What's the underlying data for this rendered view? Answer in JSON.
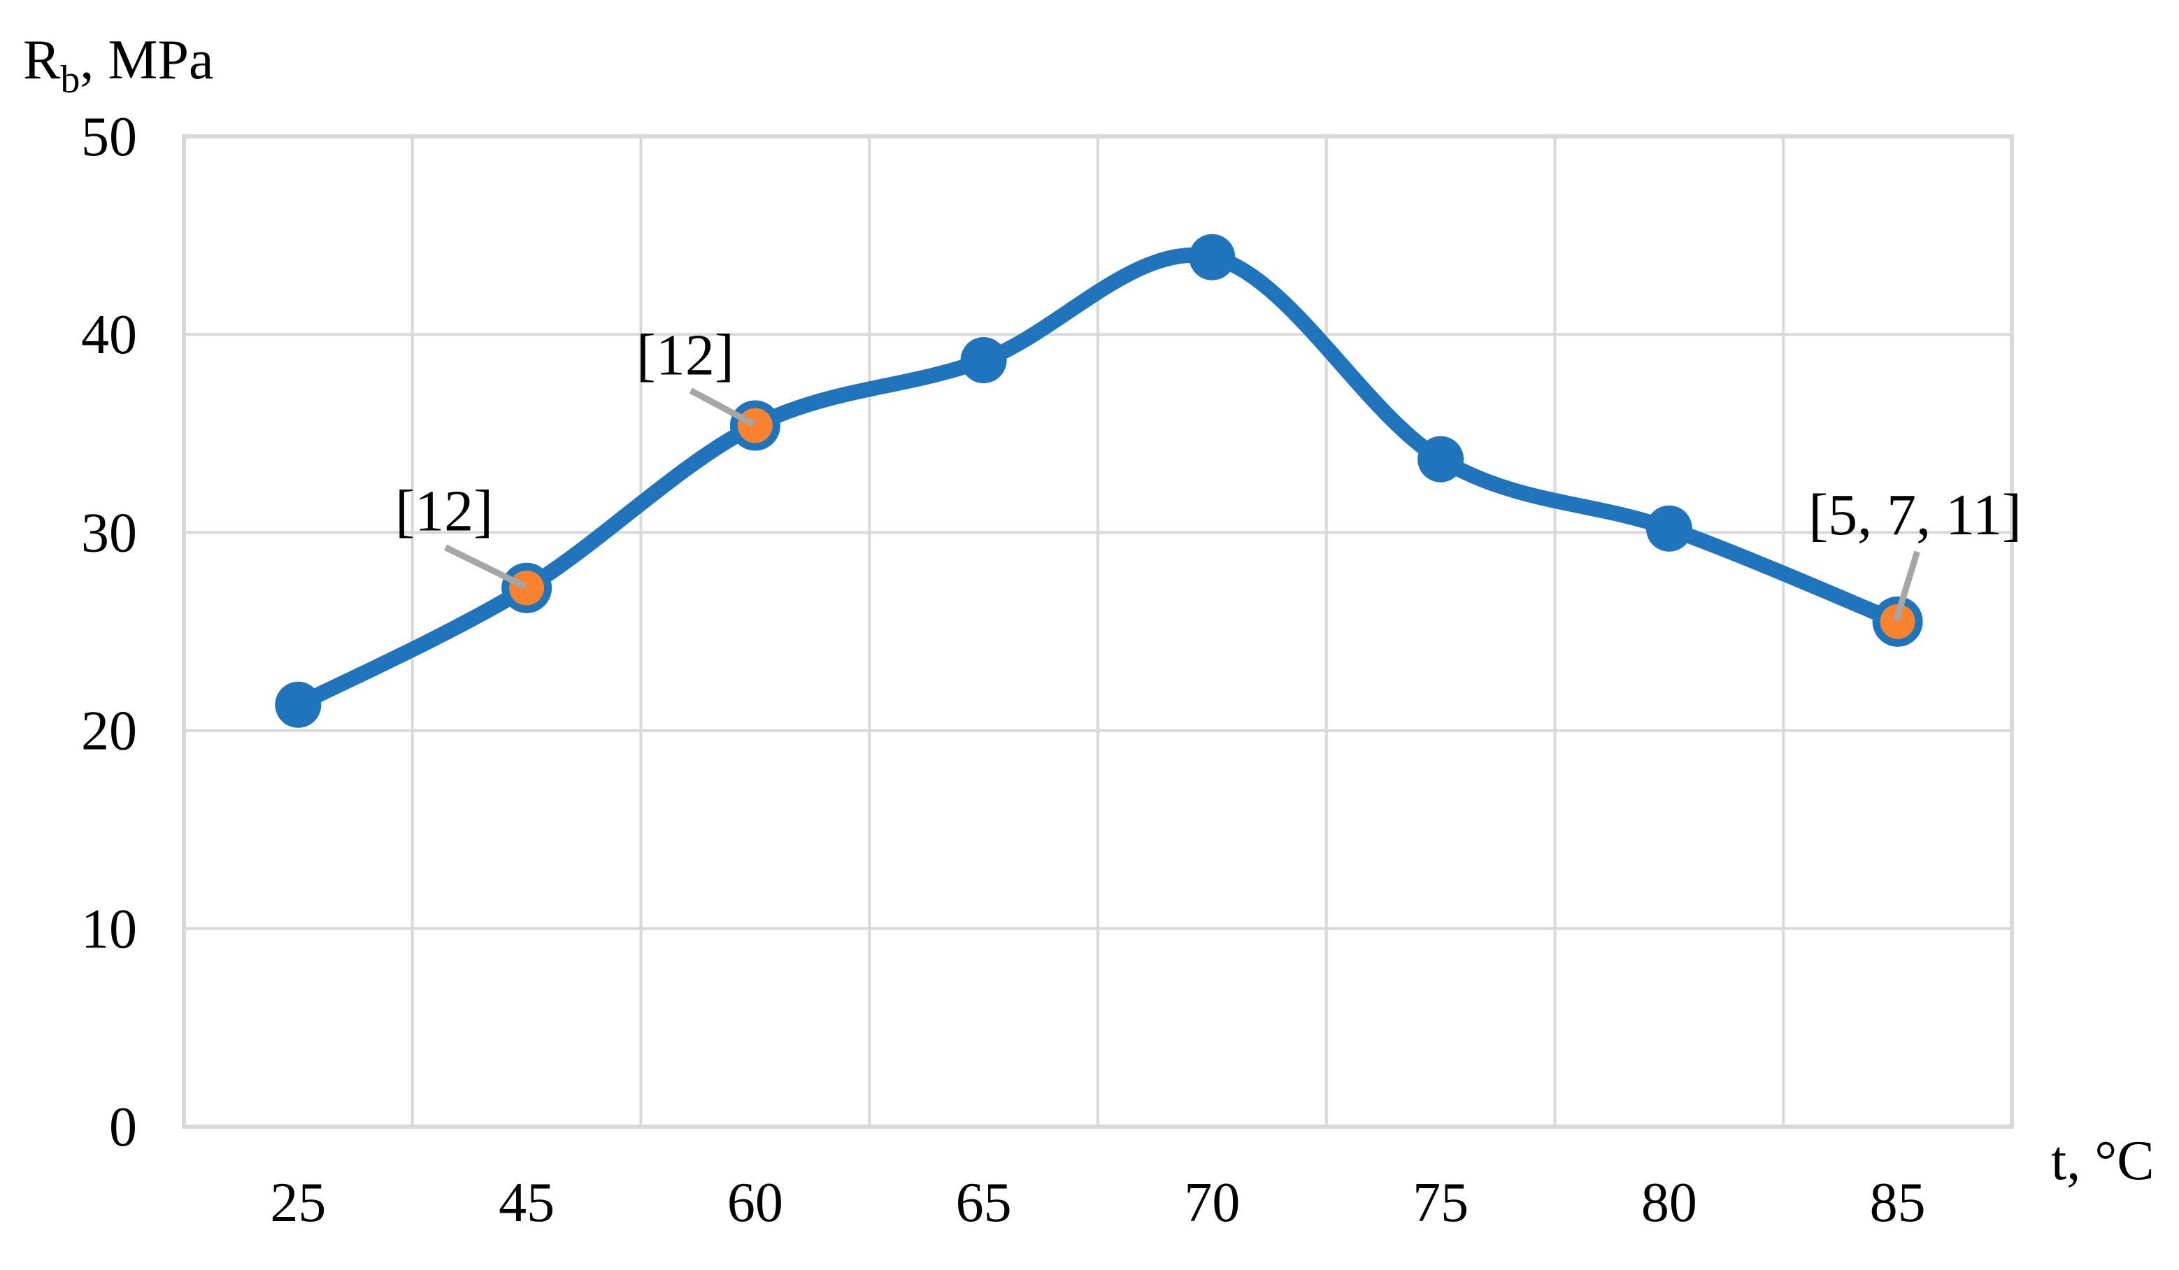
{
  "chart_data": {
    "type": "line",
    "title": "",
    "categories": [
      25,
      45,
      60,
      65,
      70,
      75,
      80,
      85
    ],
    "series": [
      {
        "name": "Rb, MPa",
        "values": [
          21.3,
          27.2,
          35.4,
          38.7,
          43.9,
          33.7,
          30.2,
          25.5
        ],
        "highlight_indices": [
          1,
          2,
          7
        ]
      }
    ],
    "x_axis": {
      "label": "t, °C",
      "tick_labels": [
        "25",
        "45",
        "60",
        "65",
        "70",
        "75",
        "80",
        "85"
      ]
    },
    "y_axis": {
      "label": {
        "main": "R",
        "sub": "b",
        "rest": ", MPa"
      },
      "ticks": [
        0,
        10,
        20,
        30,
        40,
        50
      ],
      "range": [
        0,
        50
      ]
    },
    "grid": true,
    "legend": false,
    "smooth_line": true,
    "annotations": [
      {
        "label": "[12]",
        "point_index": 1,
        "text_offset": [
          -118,
          -112
        ],
        "leader_start_offset": [
          -116,
          -58
        ]
      },
      {
        "label": "[12]",
        "point_index": 2,
        "text_offset": [
          -100,
          -103
        ],
        "leader_start_offset": [
          -92,
          -50
        ]
      },
      {
        "label": "[5, 7, 11]",
        "point_index": 7,
        "text_offset": [
          25,
          -155
        ],
        "leader_start_offset": [
          28,
          -100
        ]
      }
    ],
    "colors": {
      "line": "#1F74BC",
      "marker": "#1F74BC",
      "highlight_fill": "#F7822F",
      "leader": "#A6A6A6",
      "gridline": "#D9D9D9",
      "text": "#000000",
      "background": "#FFFFFF"
    }
  }
}
